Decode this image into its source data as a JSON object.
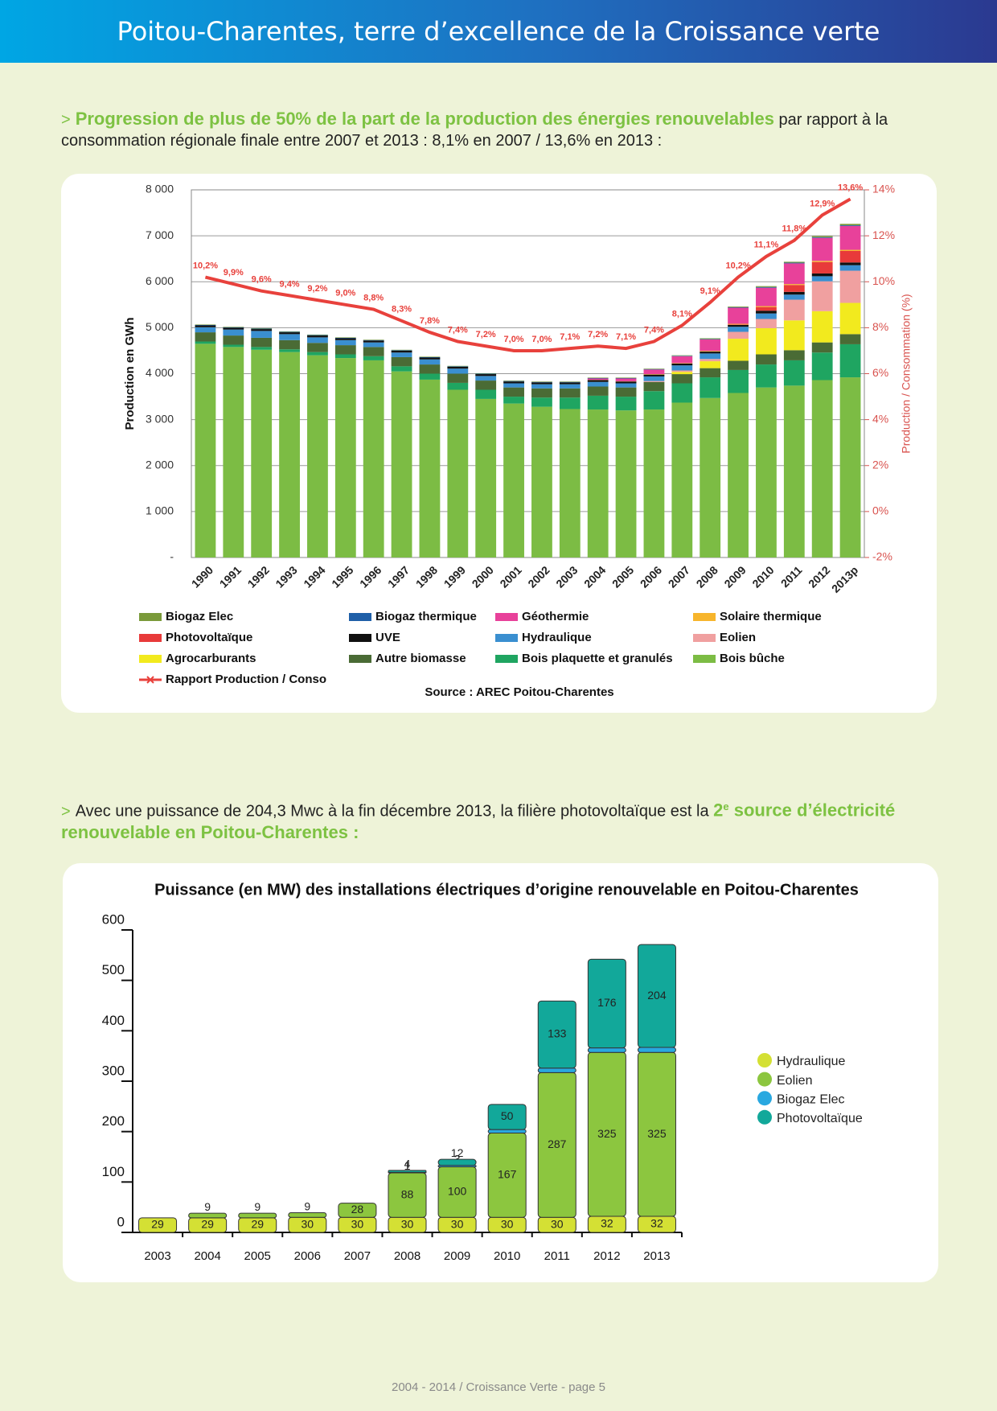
{
  "header": {
    "title": "Poitou-Charentes, terre d’excellence de la Croissance verte"
  },
  "section1": {
    "marker": ">",
    "highlight": "Progression de plus de 50% de la part de la production des énergies renouvelables",
    "text": " par rapport à la consommation régionale finale entre 2007 et 2013 : 8,1% en 2007 / 13,6% en 2013 :"
  },
  "section2": {
    "marker": ">",
    "text": "Avec une puissance de 204,3 Mwc à la fin décembre 2013, la filière photovoltaïque est la ",
    "highlight_number": "2",
    "highlight_sup": "e",
    "highlight": " source d’électricité renouvelable en Poitou-Charentes :"
  },
  "footer": "2004 - 2014 / Croissance Verte - page 5",
  "chart_data": [
    {
      "type": "bar",
      "stacked": true,
      "y_label": "Production en GWh",
      "y2_label": "Production / Consommation (%)",
      "source": "Source : AREC Poitou-Charentes",
      "categories": [
        "1990",
        "1991",
        "1992",
        "1993",
        "1994",
        "1995",
        "1996",
        "1997",
        "1998",
        "1999",
        "2000",
        "2001",
        "2002",
        "2003",
        "2004",
        "2005",
        "2006",
        "2007",
        "2008",
        "2009",
        "2010",
        "2011",
        "2012",
        "2013p"
      ],
      "ylim": [
        0,
        8000
      ],
      "yticks": [
        {
          "value": 0,
          "label": "-"
        },
        {
          "value": 1000,
          "label": "1 000"
        },
        {
          "value": 2000,
          "label": "2 000"
        },
        {
          "value": 3000,
          "label": "3 000"
        },
        {
          "value": 4000,
          "label": "4 000"
        },
        {
          "value": 5000,
          "label": "5 000"
        },
        {
          "value": 6000,
          "label": "6 000"
        },
        {
          "value": 7000,
          "label": "7 000"
        },
        {
          "value": 8000,
          "label": "8 000"
        }
      ],
      "y2lim": [
        -2,
        14
      ],
      "y2ticks": [
        {
          "value": -2,
          "label": "-2%"
        },
        {
          "value": 0,
          "label": "0%"
        },
        {
          "value": 2,
          "label": "2%"
        },
        {
          "value": 4,
          "label": "4%"
        },
        {
          "value": 6,
          "label": "6%"
        },
        {
          "value": 8,
          "label": "8%"
        },
        {
          "value": 10,
          "label": "10%"
        },
        {
          "value": 12,
          "label": "12%"
        },
        {
          "value": 14,
          "label": "14%"
        }
      ],
      "grid": true,
      "series": [
        {
          "name": "Biogaz Elec",
          "color": "#7a9a3a",
          "values": [
            10,
            10,
            10,
            10,
            10,
            10,
            10,
            10,
            10,
            10,
            10,
            10,
            10,
            10,
            10,
            10,
            10,
            10,
            15,
            15,
            20,
            20,
            25,
            30
          ]
        },
        {
          "name": "Biogaz thermique",
          "color": "#1f5fa8",
          "values": [
            10,
            10,
            10,
            10,
            10,
            10,
            10,
            10,
            10,
            10,
            10,
            10,
            10,
            10,
            10,
            10,
            10,
            10,
            10,
            10,
            15,
            15,
            15,
            15
          ]
        },
        {
          "name": "Géothermie",
          "color": "#e8419a",
          "values": [
            0,
            0,
            0,
            0,
            0,
            0,
            0,
            0,
            0,
            0,
            0,
            0,
            0,
            0,
            30,
            60,
            100,
            150,
            250,
            350,
            400,
            450,
            500,
            520
          ]
        },
        {
          "name": "Solaire thermique",
          "color": "#f7b52c",
          "values": [
            0,
            0,
            0,
            0,
            0,
            0,
            0,
            0,
            0,
            0,
            0,
            0,
            0,
            0,
            5,
            5,
            10,
            10,
            15,
            15,
            20,
            20,
            25,
            25
          ]
        },
        {
          "name": "Photovoltaïque",
          "color": "#e83a3a",
          "values": [
            0,
            0,
            0,
            0,
            0,
            0,
            0,
            0,
            0,
            0,
            0,
            0,
            0,
            0,
            0,
            0,
            0,
            0,
            0,
            10,
            80,
            150,
            250,
            250
          ]
        },
        {
          "name": "UVE",
          "color": "#111111",
          "values": [
            40,
            40,
            40,
            40,
            40,
            40,
            40,
            40,
            40,
            40,
            40,
            40,
            40,
            40,
            40,
            40,
            40,
            40,
            40,
            40,
            60,
            60,
            60,
            60
          ]
        },
        {
          "name": "Hydraulique",
          "color": "#3a8fd0",
          "values": [
            110,
            130,
            150,
            130,
            120,
            110,
            100,
            100,
            110,
            110,
            100,
            90,
            90,
            90,
            100,
            90,
            100,
            110,
            120,
            110,
            120,
            110,
            110,
            120
          ]
        },
        {
          "name": "Eolien",
          "color": "#f0a0a0",
          "values": [
            0,
            0,
            0,
            0,
            0,
            0,
            0,
            0,
            0,
            0,
            0,
            0,
            0,
            0,
            0,
            0,
            20,
            30,
            50,
            150,
            200,
            450,
            650,
            700
          ]
        },
        {
          "name": "Agrocarburants",
          "color": "#f2ea1e",
          "values": [
            0,
            0,
            0,
            0,
            0,
            0,
            0,
            0,
            0,
            0,
            0,
            0,
            0,
            0,
            0,
            0,
            0,
            50,
            150,
            480,
            570,
            650,
            680,
            680
          ]
        },
        {
          "name": "Autre biomasse",
          "color": "#4a6b35",
          "values": [
            200,
            200,
            200,
            200,
            200,
            200,
            200,
            200,
            200,
            200,
            200,
            200,
            200,
            200,
            200,
            200,
            200,
            200,
            200,
            200,
            220,
            220,
            220,
            220
          ]
        },
        {
          "name": "Bois plaquette et granulés",
          "color": "#1fa561",
          "values": [
            50,
            50,
            60,
            60,
            70,
            80,
            90,
            110,
            130,
            150,
            200,
            150,
            200,
            250,
            300,
            300,
            400,
            420,
            450,
            500,
            500,
            550,
            600,
            720
          ]
        },
        {
          "name": "Bois bûche",
          "color": "#7cbc44",
          "values": [
            4650,
            4580,
            4520,
            4470,
            4400,
            4340,
            4290,
            4050,
            3870,
            3650,
            3450,
            3350,
            3280,
            3230,
            3220,
            3200,
            3220,
            3370,
            3470,
            3580,
            3700,
            3740,
            3860,
            3920
          ]
        },
        {
          "name": "Rapport Production / Conso",
          "color": "#e8413c",
          "type": "line",
          "axis": "y2",
          "values": [
            10.2,
            9.9,
            9.6,
            9.4,
            9.2,
            9.0,
            8.8,
            8.3,
            7.8,
            7.4,
            7.2,
            7.0,
            7.0,
            7.1,
            7.2,
            7.1,
            7.4,
            8.1,
            9.1,
            10.2,
            11.1,
            11.8,
            12.9,
            13.6
          ],
          "value_labels": [
            "10,2%",
            "9,9%",
            "9,6%",
            "9,4%",
            "9,2%",
            "9,0%",
            "8,8%",
            "8,3%",
            "7,8%",
            "7,4%",
            "7,2%",
            "7,0%",
            "7,0%",
            "7,1%",
            "7,2%",
            "7,1%",
            "7,4%",
            "8,1%",
            "9,1%",
            "10,2%",
            "11,1%",
            "11,8%",
            "12,9%",
            "13,6%"
          ]
        }
      ]
    },
    {
      "type": "bar",
      "stacked": true,
      "title": "Puissance (en MW) des installations électriques d’origine renouvelable en Poitou-Charentes",
      "categories": [
        "2003",
        "2004",
        "2005",
        "2006",
        "2007",
        "2008",
        "2009",
        "2010",
        "2011",
        "2012",
        "2013"
      ],
      "ylim": [
        0,
        600
      ],
      "yticks": [
        0,
        100,
        200,
        300,
        400,
        500,
        600
      ],
      "grid": false,
      "series": [
        {
          "name": "Hydraulique",
          "color": "#d4e034",
          "values": [
            29,
            29,
            29,
            30,
            30,
            30,
            30,
            30,
            30,
            32,
            32
          ]
        },
        {
          "name": "Eolien",
          "color": "#8cc63f",
          "values": [
            null,
            9,
            9,
            9,
            28,
            88,
            100,
            167,
            287,
            325,
            325
          ]
        },
        {
          "name": "Biogaz Elec",
          "color": "#29a8e0",
          "values": [
            null,
            null,
            null,
            null,
            null,
            1,
            3,
            7,
            9,
            9,
            10
          ]
        },
        {
          "name": "Photovoltaïque",
          "color": "#12a89a",
          "values": [
            null,
            null,
            null,
            null,
            null,
            4,
            12,
            50,
            133,
            176,
            204
          ]
        }
      ]
    }
  ]
}
